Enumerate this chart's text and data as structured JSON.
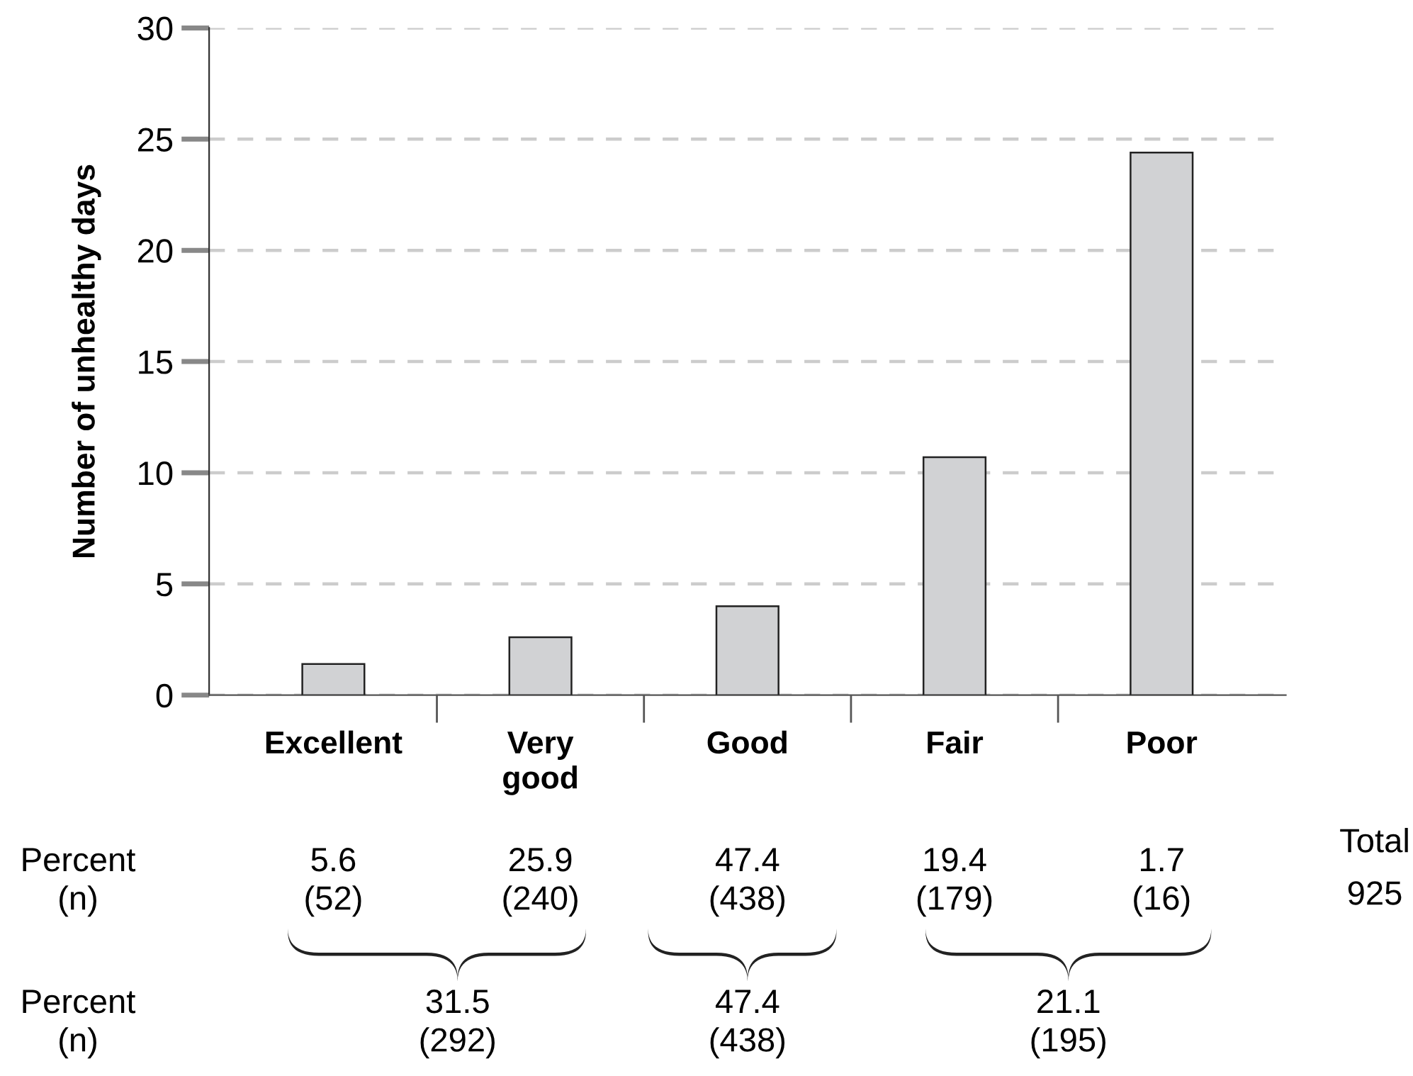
{
  "chart_data": {
    "type": "bar",
    "ylabel": "Number of unhealthy days",
    "categories": [
      "Excellent",
      "Very good",
      "Good",
      "Fair",
      "Poor"
    ],
    "values": [
      1.4,
      2.6,
      4.0,
      10.7,
      24.4
    ],
    "color": "#d1d2d4",
    "ylim": [
      0,
      30
    ],
    "yticks": [
      0,
      5,
      10,
      15,
      20,
      25,
      30
    ],
    "grid": "y",
    "annotations": [
      "Total",
      "925",
      "Percent\n(n)",
      "5.6\n(52)",
      "25.9\n(240)",
      "47.4\n(438)",
      "19.4\n(179)",
      "1.7\n(16)",
      "Percent\n(n)",
      "31.5\n(292)",
      "47.4\n(438)",
      "21.1\n(195)"
    ]
  }
}
